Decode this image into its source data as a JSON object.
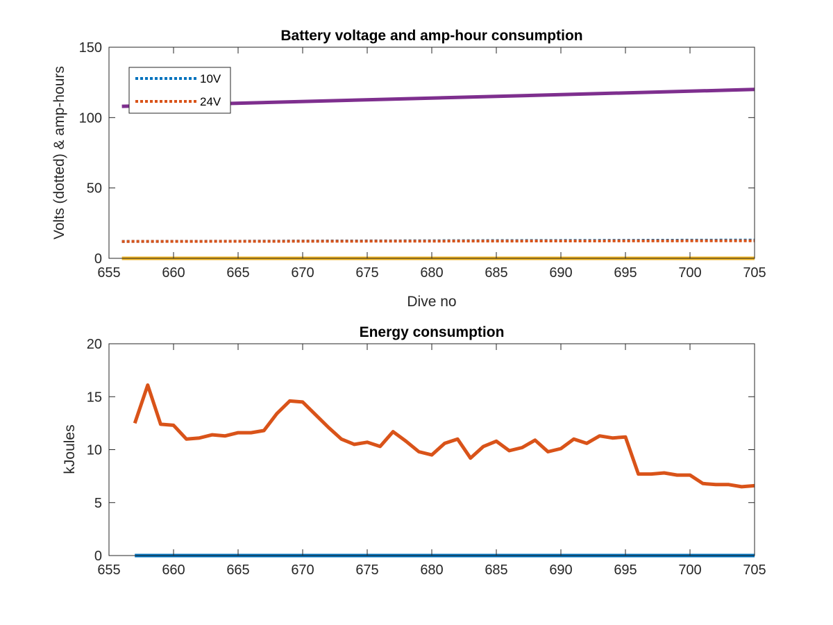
{
  "chart_data": [
    {
      "type": "line",
      "title": "Battery voltage and amp-hour consumption",
      "xlabel": "Dive no",
      "ylabel": "Volts (dotted) & amp-hours",
      "xlim": [
        655,
        705
      ],
      "ylim": [
        0,
        150
      ],
      "xticks": [
        655,
        660,
        665,
        670,
        675,
        680,
        685,
        690,
        695,
        700,
        705
      ],
      "yticks": [
        0,
        50,
        100,
        150
      ],
      "grid": false,
      "legend": "top-left",
      "series": [
        {
          "name": "10V",
          "style": "dotted",
          "color": "#0072BD",
          "x": [
            656,
            705
          ],
          "y": [
            12,
            13
          ]
        },
        {
          "name": "24V",
          "style": "dotted",
          "color": "#D95319",
          "x": [
            656,
            705
          ],
          "y": [
            12,
            12.5
          ]
        },
        {
          "style": "solid",
          "color": "#7E2F8E",
          "x": [
            656,
            705
          ],
          "y": [
            108,
            120
          ]
        },
        {
          "style": "solid",
          "color": "#EDB120",
          "x": [
            656,
            705
          ],
          "y": [
            0,
            0
          ]
        }
      ]
    },
    {
      "type": "line",
      "title": "Energy consumption",
      "xlabel": "",
      "ylabel": "kJoules",
      "xlim": [
        655,
        705
      ],
      "ylim": [
        0,
        20
      ],
      "xticks": [
        655,
        660,
        665,
        670,
        675,
        680,
        685,
        690,
        695,
        700,
        705
      ],
      "yticks": [
        0,
        5,
        10,
        15,
        20
      ],
      "grid": false,
      "series": [
        {
          "style": "solid",
          "color": "#D95319",
          "x": [
            657,
            658,
            659,
            660,
            661,
            662,
            663,
            664,
            665,
            666,
            667,
            668,
            669,
            670,
            671,
            672,
            673,
            674,
            675,
            676,
            677,
            678,
            679,
            680,
            681,
            682,
            683,
            684,
            685,
            686,
            687,
            688,
            689,
            690,
            691,
            692,
            693,
            694,
            695,
            696,
            697,
            698,
            699,
            700,
            701,
            702,
            703,
            704,
            705
          ],
          "y": [
            12.5,
            16.1,
            12.4,
            12.3,
            11.0,
            11.1,
            11.4,
            11.3,
            11.6,
            11.6,
            11.8,
            13.4,
            14.6,
            14.5,
            13.3,
            12.1,
            11.0,
            10.5,
            10.7,
            10.3,
            11.7,
            10.8,
            9.8,
            9.5,
            10.6,
            11.0,
            9.2,
            10.3,
            10.8,
            9.9,
            10.2,
            10.9,
            9.8,
            10.1,
            11.0,
            10.6,
            11.3,
            11.1,
            11.2,
            7.7,
            7.7,
            7.8,
            7.6,
            7.6,
            6.8,
            6.7,
            6.7,
            6.5,
            6.6
          ]
        },
        {
          "style": "solid",
          "color": "#0072BD",
          "x": [
            657,
            705
          ],
          "y": [
            0,
            0
          ]
        }
      ]
    }
  ]
}
